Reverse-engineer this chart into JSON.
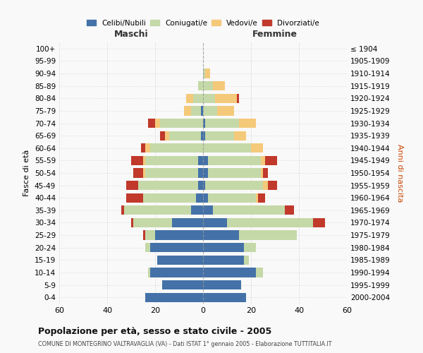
{
  "age_groups": [
    "0-4",
    "5-9",
    "10-14",
    "15-19",
    "20-24",
    "25-29",
    "30-34",
    "35-39",
    "40-44",
    "45-49",
    "50-54",
    "55-59",
    "60-64",
    "65-69",
    "70-74",
    "75-79",
    "80-84",
    "85-89",
    "90-94",
    "95-99",
    "100+"
  ],
  "birth_years": [
    "2000-2004",
    "1995-1999",
    "1990-1994",
    "1985-1989",
    "1980-1984",
    "1975-1979",
    "1970-1974",
    "1965-1969",
    "1960-1964",
    "1955-1959",
    "1950-1954",
    "1945-1949",
    "1940-1944",
    "1935-1939",
    "1930-1934",
    "1925-1929",
    "1920-1924",
    "1915-1919",
    "1910-1914",
    "1905-1909",
    "≤ 1904"
  ],
  "male": {
    "celibi": [
      24,
      17,
      22,
      19,
      22,
      20,
      13,
      5,
      3,
      2,
      2,
      2,
      0,
      1,
      0,
      1,
      0,
      0,
      0,
      0,
      0
    ],
    "coniugati": [
      0,
      0,
      1,
      0,
      2,
      4,
      16,
      28,
      22,
      25,
      22,
      22,
      22,
      13,
      18,
      4,
      4,
      2,
      0,
      0,
      0
    ],
    "vedovi": [
      0,
      0,
      0,
      0,
      0,
      0,
      0,
      0,
      0,
      0,
      1,
      1,
      2,
      2,
      2,
      3,
      3,
      0,
      0,
      0,
      0
    ],
    "divorziati": [
      0,
      0,
      0,
      0,
      0,
      1,
      1,
      1,
      7,
      5,
      4,
      5,
      2,
      2,
      3,
      0,
      0,
      0,
      0,
      0,
      0
    ]
  },
  "female": {
    "nubili": [
      18,
      16,
      22,
      17,
      17,
      15,
      10,
      4,
      2,
      1,
      2,
      2,
      0,
      1,
      1,
      0,
      0,
      0,
      0,
      0,
      0
    ],
    "coniugate": [
      0,
      0,
      3,
      2,
      5,
      24,
      36,
      30,
      20,
      24,
      22,
      22,
      20,
      12,
      14,
      6,
      5,
      4,
      1,
      0,
      0
    ],
    "vedove": [
      0,
      0,
      0,
      0,
      0,
      0,
      0,
      0,
      1,
      2,
      1,
      2,
      5,
      5,
      7,
      7,
      9,
      5,
      2,
      0,
      0
    ],
    "divorziate": [
      0,
      0,
      0,
      0,
      0,
      0,
      5,
      4,
      3,
      4,
      2,
      5,
      0,
      0,
      0,
      0,
      1,
      0,
      0,
      0,
      0
    ]
  },
  "colors": {
    "celibi": "#4472a8",
    "coniugati": "#c5d9a8",
    "vedovi": "#f5c97a",
    "divorziati": "#c0392b"
  },
  "title": "Popolazione per età, sesso e stato civile - 2005",
  "subtitle": "COMUNE DI MONTEGRINO VALTRAVAGLIA (VA) - Dati ISTAT 1° gennaio 2005 - Elaborazione TUTTITALIA.IT",
  "xlabel_left": "Maschi",
  "xlabel_right": "Femmine",
  "ylabel_left": "Fasce di età",
  "ylabel_right": "Anni di nascita",
  "xlim": 60,
  "bg_color": "#f9f9f9",
  "grid_color": "#cccccc"
}
